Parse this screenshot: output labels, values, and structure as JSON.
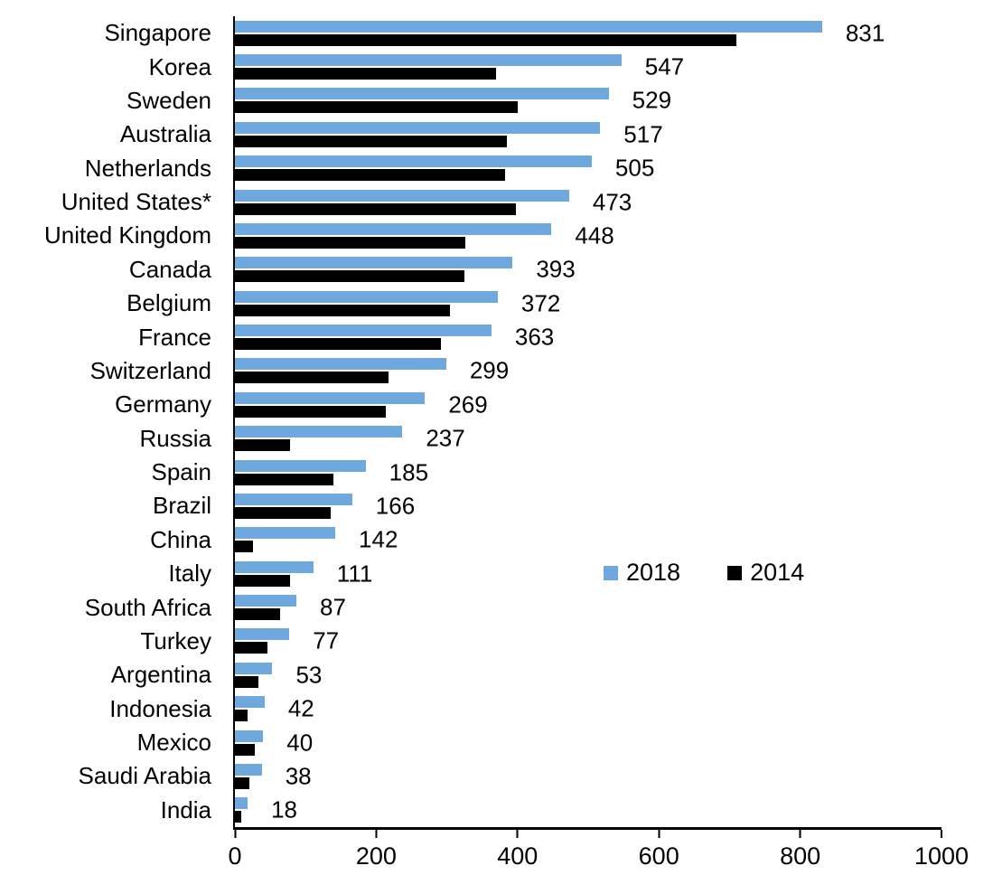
{
  "chart_data": {
    "type": "bar",
    "orientation": "horizontal",
    "title": "",
    "xlabel": "",
    "ylabel": "",
    "grid": false,
    "categories": [
      "Singapore",
      "Korea",
      "Sweden",
      "Australia",
      "Netherlands",
      "United States*",
      "United Kingdom",
      "Canada",
      "Belgium",
      "France",
      "Switzerland",
      "Germany",
      "Russia",
      "Spain",
      "Brazil",
      "China",
      "Italy",
      "South Africa",
      "Turkey",
      "Argentina",
      "Indonesia",
      "Mexico",
      "Saudi Arabia",
      "India"
    ],
    "series": [
      {
        "name": "2018",
        "color": "#6FA8DC",
        "data_labels_shown": true,
        "values": [
          831,
          547,
          529,
          517,
          505,
          473,
          448,
          393,
          372,
          363,
          299,
          269,
          237,
          185,
          166,
          142,
          111,
          87,
          77,
          53,
          42,
          40,
          38,
          18
        ]
      },
      {
        "name": "2014",
        "color": "#000000",
        "data_labels_shown": false,
        "values": [
          710,
          370,
          400,
          385,
          382,
          398,
          326,
          325,
          304,
          292,
          218,
          214,
          78,
          140,
          135,
          26,
          78,
          64,
          46,
          33,
          18,
          28,
          21,
          9
        ]
      }
    ],
    "xlim": [
      0,
      1000
    ],
    "xticks": [
      0,
      200,
      400,
      600,
      800,
      1000
    ],
    "legend": {
      "position": "middle-right",
      "entries": [
        "2018",
        "2014"
      ]
    }
  }
}
